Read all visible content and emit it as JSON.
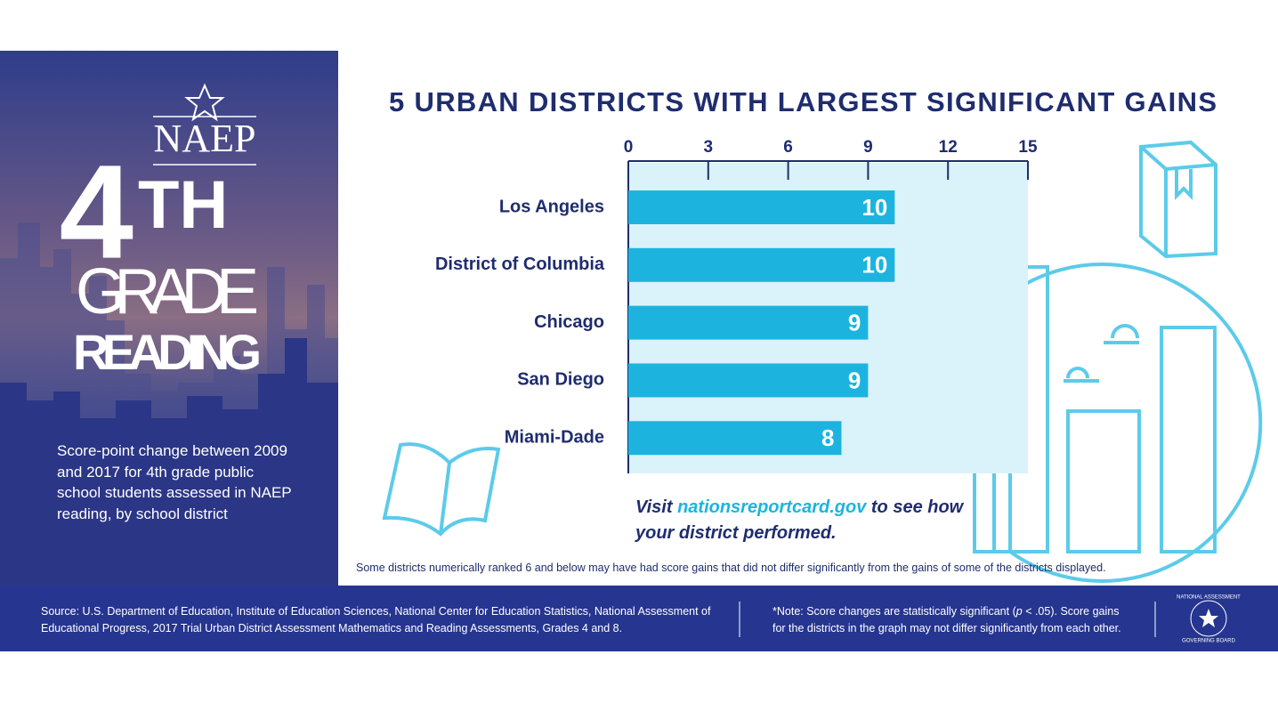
{
  "sidebar": {
    "logo": "NAEP",
    "grade_number": "4",
    "grade_suffix": "TH",
    "grade": "GRADE",
    "subject": "READING",
    "description": "Score-point change between 2009 and 2017 for 4th grade public school students assessed in NAEP reading, by school district"
  },
  "chart_data": {
    "type": "bar",
    "orientation": "horizontal",
    "title": "5 URBAN DISTRICTS WITH LARGEST SIGNIFICANT GAINS",
    "categories": [
      "Los Angeles",
      "District of Columbia",
      "Chicago",
      "San Diego",
      "Miami-Dade"
    ],
    "values": [
      10,
      10,
      9,
      9,
      8
    ],
    "color": "#1cb4df",
    "xlim": [
      0,
      15
    ],
    "xticks": [
      0,
      3,
      6,
      9,
      12,
      15
    ]
  },
  "callout": {
    "prefix": "Visit",
    "link": "nationsreportcard.gov",
    "suffix": "to see how your district performed."
  },
  "footnote": "Some districts numerically ranked 6 and below may have had score gains that did not differ significantly from the gains of some of the districts displayed.",
  "footer": {
    "source": "Source: U.S. Department of Education, Institute of Education Sciences, National Center for Education Statistics, National Assessment of Educational Progress, 2017 Trial Urban District Assessment Mathematics and Reading Assessments, Grades 4 and 8.",
    "note_before": "*Note: Score changes are statistically significant (",
    "note_italic": "p",
    "note_after": "< .05). Score gains for the districts in the graph may not differ significantly from each other.",
    "badge_top": "NATIONAL ASSESSMENT",
    "badge_bottom": "GOVERNING BOARD"
  }
}
